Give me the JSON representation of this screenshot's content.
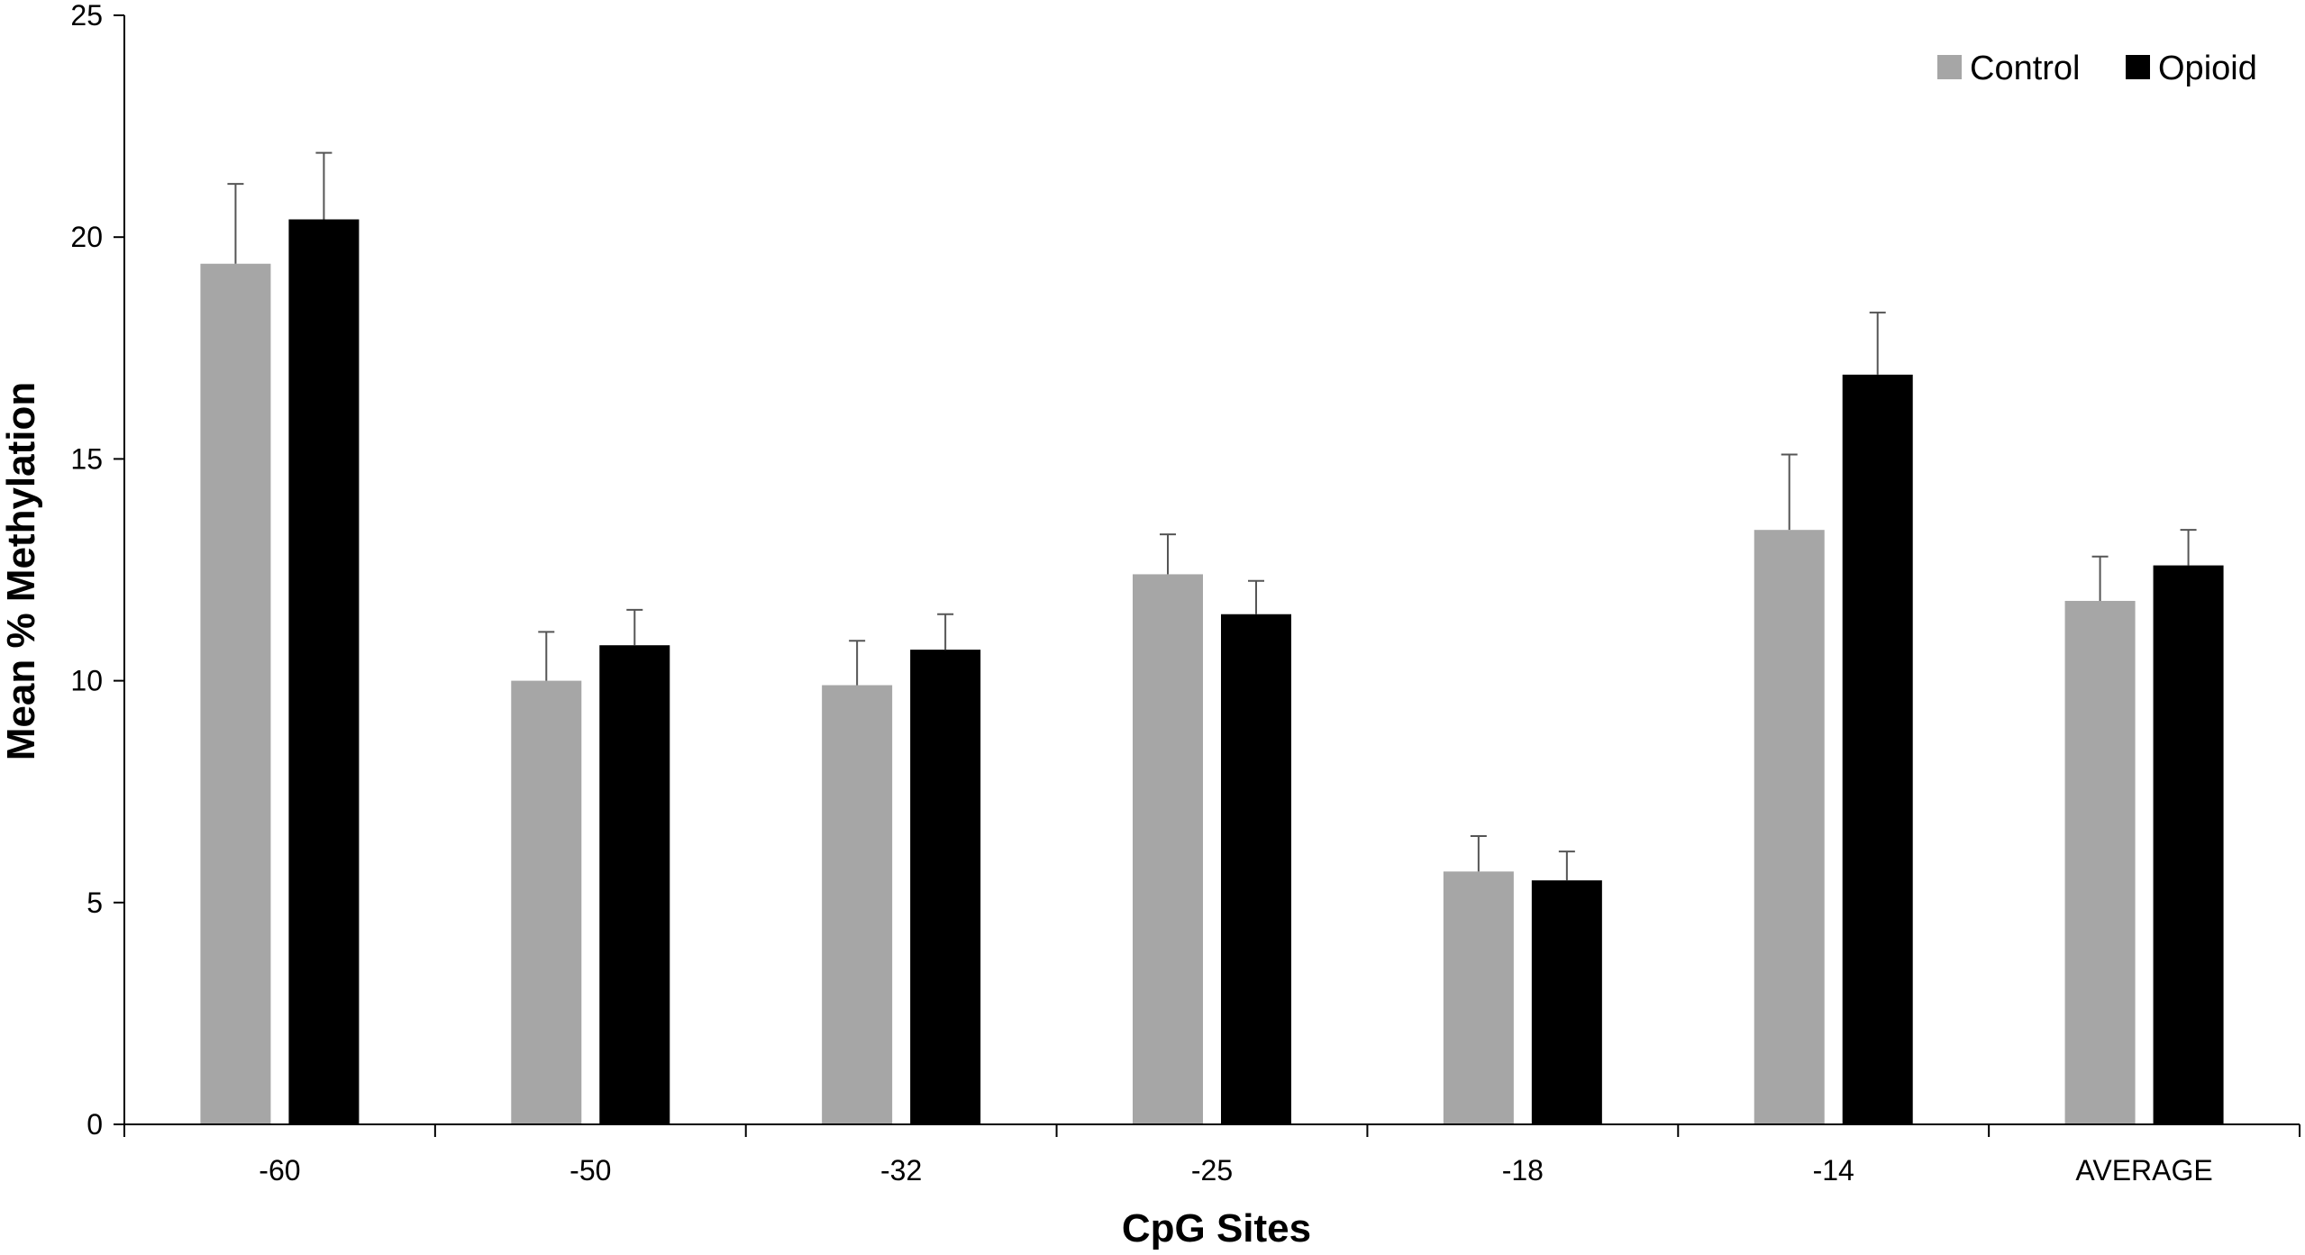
{
  "chart_data": {
    "type": "bar",
    "title": "",
    "xlabel": "CpG Sites",
    "ylabel": "Mean % Methylation",
    "categories": [
      "-60",
      "-50",
      "-32",
      "-25",
      "-18",
      "-14",
      "AVERAGE"
    ],
    "ylim": [
      0,
      25
    ],
    "yticks": [
      0,
      5,
      10,
      15,
      20,
      25
    ],
    "grid": false,
    "legend_position": "top-right",
    "series": [
      {
        "name": "Control",
        "color": "#a6a6a6",
        "values": [
          19.4,
          10.0,
          9.9,
          12.4,
          5.7,
          13.4,
          11.8
        ],
        "error": [
          1.8,
          1.1,
          1.0,
          0.9,
          0.8,
          1.7,
          1.0
        ]
      },
      {
        "name": "Opioid",
        "color": "#000000",
        "values": [
          20.4,
          10.8,
          10.7,
          11.5,
          5.5,
          16.9,
          12.6
        ],
        "error": [
          1.5,
          0.8,
          0.8,
          0.75,
          0.65,
          1.4,
          0.8
        ]
      }
    ]
  }
}
